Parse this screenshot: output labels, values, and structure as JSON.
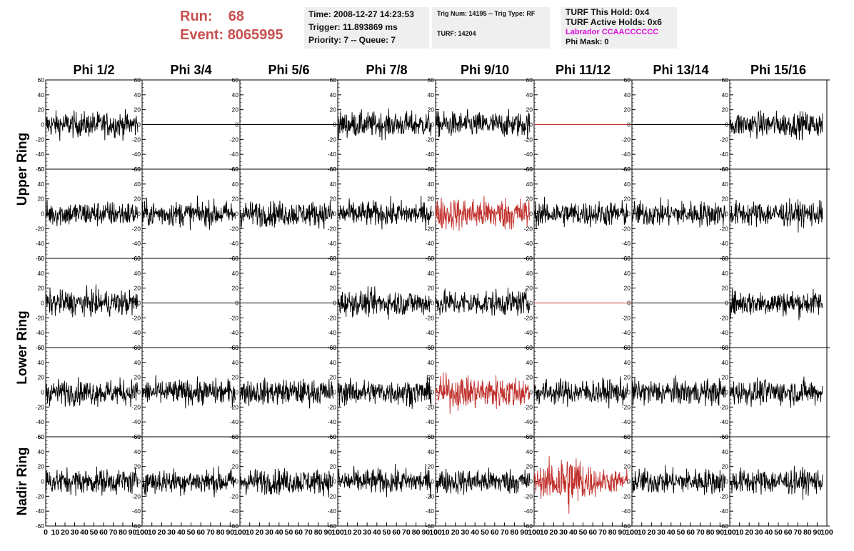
{
  "header": {
    "run_label": "Run:",
    "run_value": "68",
    "event_label": "Event:",
    "event_value": "8065995"
  },
  "info1": {
    "time": "Time: 2008-12-27 14:23:53",
    "trigger": "Trigger: 11.893869 ms",
    "priority": "Priority: 7 -- Queue: 7"
  },
  "info2": {
    "trig": "Trig Num: 14195 -- Trig Type: RF",
    "turf": "TURF: 14204"
  },
  "info3": {
    "this_hold": "TURF This Hold: 0x4",
    "active_holds": "TURF Active Holds: 0x6",
    "labrador": "Labrador CCAACCCCCC",
    "phi_mask": "Phi Mask: 0"
  },
  "colors": {
    "trace": "#000000",
    "highlight": "#c0302c",
    "accent_text": "#c8504f",
    "magenta": "#e010e0"
  },
  "chart_data": {
    "type": "line",
    "columns": [
      "Phi 1/2",
      "Phi 3/4",
      "Phi 5/6",
      "Phi 7/8",
      "Phi 9/10",
      "Phi 11/12",
      "Phi 13/14",
      "Phi 15/16"
    ],
    "ring_labels": [
      "Upper Ring",
      "Lower Ring",
      "Nadir Ring"
    ],
    "ylim": [
      -60,
      60
    ],
    "xlim": [
      0,
      100
    ],
    "y_ticks": [
      "60",
      "40",
      "20",
      "0",
      "-20",
      "-40",
      "-60"
    ],
    "x_ticks": [
      "0",
      "10",
      "20",
      "30",
      "40",
      "50",
      "60",
      "70",
      "80",
      "90",
      "100"
    ],
    "rows": [
      {
        "ring": "Upper Ring",
        "types": [
          "noise",
          "flat",
          "flat",
          "noise",
          "noise",
          "flat",
          "flat",
          "noise"
        ],
        "highlight": [
          false,
          false,
          false,
          false,
          false,
          true,
          false,
          false
        ]
      },
      {
        "ring": "Upper Ring",
        "types": [
          "noise",
          "noise",
          "noise",
          "noise",
          "noise",
          "noise",
          "noise",
          "noise"
        ],
        "highlight": [
          false,
          false,
          false,
          false,
          true,
          false,
          false,
          false
        ]
      },
      {
        "ring": "Lower Ring",
        "types": [
          "noise",
          "flat",
          "flat",
          "noise",
          "noise",
          "flat",
          "flat",
          "noise"
        ],
        "highlight": [
          false,
          false,
          false,
          false,
          false,
          true,
          false,
          false
        ]
      },
      {
        "ring": "Lower Ring",
        "types": [
          "noise",
          "noise",
          "noise",
          "noise",
          "noise",
          "noise",
          "noise",
          "noise"
        ],
        "highlight": [
          false,
          false,
          false,
          false,
          true,
          false,
          false,
          false
        ]
      },
      {
        "ring": "Nadir Ring",
        "types": [
          "noise",
          "noise",
          "noise",
          "noise",
          "noise",
          "noise",
          "noise",
          "noise"
        ],
        "highlight": [
          false,
          false,
          false,
          false,
          false,
          true,
          false,
          false
        ]
      }
    ]
  }
}
